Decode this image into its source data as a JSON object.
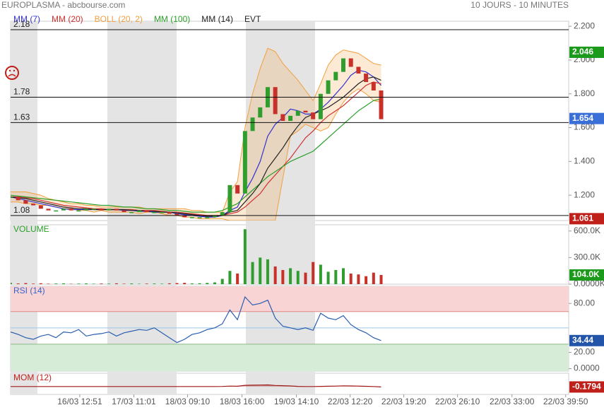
{
  "header": {
    "title": "EUROPLASMA - abcbourse.com",
    "period": "10 JOURS - 10 MINUTES",
    "events": "EVT"
  },
  "x_axis": {
    "xlim": [
      0,
      73.8
    ],
    "xticks": [
      {
        "value": 9.15,
        "label": "16/03 12:51"
      },
      {
        "value": 16.3,
        "label": "17/03 11:01"
      },
      {
        "value": 23.4,
        "label": "18/03 09:10"
      },
      {
        "value": 30.6,
        "label": "18/03 16:00"
      },
      {
        "value": 37.8,
        "label": "19/03 14:10"
      },
      {
        "value": 44.9,
        "label": "22/03 12:20"
      },
      {
        "value": 52,
        "label": "22/03 19:20"
      },
      {
        "value": 59.1,
        "label": "22/03 26:10"
      },
      {
        "value": 66.3,
        "label": "22/03 33:00"
      },
      {
        "value": 73.4,
        "label": "22/03 39:50"
      }
    ]
  },
  "chart_data": [
    {
      "type": "candlestick",
      "ylim": [
        1.05,
        2.23
      ],
      "yticks": [
        {
          "value": 2.2,
          "label": "2.200"
        },
        {
          "value": 2.0,
          "label": "2.000"
        },
        {
          "value": 1.8,
          "label": "1.800"
        },
        {
          "value": 1.6,
          "label": "1.600"
        },
        {
          "value": 1.4,
          "label": "1.400"
        },
        {
          "value": 1.2,
          "label": "1.200"
        }
      ],
      "hlines": [
        2.18,
        1.78,
        1.63,
        1.08
      ],
      "last_labels": [
        {
          "value": 2.046,
          "color": "#1c9a1c"
        },
        {
          "value": 1.654,
          "color": "#3a6fd8"
        },
        {
          "value": 1.061,
          "color": "#c0201a"
        }
      ],
      "up_color": "#2f9e2f",
      "down_color": "#c8302a",
      "close": [
        1.19,
        1.17,
        1.15,
        1.14,
        1.12,
        1.11,
        1.11,
        1.12,
        1.11,
        1.11,
        1.12,
        1.12,
        1.11,
        1.12,
        1.11,
        1.1,
        1.1,
        1.11,
        1.1,
        1.1,
        1.1,
        1.09,
        1.08,
        1.07,
        1.07,
        1.07,
        1.07,
        1.08,
        1.1,
        1.26,
        1.21,
        1.58,
        1.66,
        1.72,
        1.84,
        1.68,
        1.64,
        1.67,
        1.7,
        1.69,
        1.65,
        1.8,
        1.88,
        1.93,
        2.01,
        1.96,
        1.92,
        1.87,
        1.82,
        1.65
      ],
      "bands": {
        "name": "BOLL (20, 2)",
        "color": "#f0a040",
        "upper": [
          1.22,
          1.22,
          1.22,
          1.21,
          1.2,
          1.18,
          1.17,
          1.16,
          1.15,
          1.15,
          1.14,
          1.14,
          1.13,
          1.13,
          1.13,
          1.13,
          1.13,
          1.13,
          1.12,
          1.12,
          1.12,
          1.12,
          1.12,
          1.12,
          1.11,
          1.11,
          1.1,
          1.1,
          1.1,
          1.22,
          1.28,
          1.6,
          1.8,
          1.95,
          2.07,
          2.05,
          1.98,
          1.93,
          1.88,
          1.82,
          1.76,
          1.86,
          1.97,
          2.03,
          2.06,
          2.05,
          2.04,
          2.01,
          1.98,
          1.97
        ],
        "lower": [
          1.16,
          1.16,
          1.15,
          1.15,
          1.14,
          1.14,
          1.13,
          1.12,
          1.12,
          1.11,
          1.11,
          1.1,
          1.11,
          1.1,
          1.1,
          1.1,
          1.1,
          1.09,
          1.1,
          1.1,
          1.09,
          1.08,
          1.08,
          1.07,
          1.07,
          1.06,
          1.06,
          1.06,
          1.06,
          1.05,
          1.05,
          1.05,
          1.05,
          1.05,
          1.05,
          1.05,
          1.3,
          1.55,
          1.58,
          1.62,
          1.6,
          1.58,
          1.6,
          1.68,
          1.75,
          1.8,
          1.83,
          1.8,
          1.76,
          1.75
        ]
      },
      "series": [
        {
          "name": "MM (7)",
          "color": "#3333cc",
          "values": [
            1.19,
            1.18,
            1.17,
            1.16,
            1.15,
            1.14,
            1.13,
            1.12,
            1.115,
            1.115,
            1.115,
            1.115,
            1.115,
            1.115,
            1.115,
            1.11,
            1.11,
            1.105,
            1.105,
            1.1,
            1.1,
            1.1,
            1.09,
            1.085,
            1.08,
            1.075,
            1.07,
            1.07,
            1.08,
            1.11,
            1.13,
            1.22,
            1.3,
            1.4,
            1.55,
            1.62,
            1.66,
            1.71,
            1.7,
            1.68,
            1.68,
            1.71,
            1.75,
            1.8,
            1.85,
            1.91,
            1.94,
            1.93,
            1.9,
            1.85
          ]
        },
        {
          "name": "MM (20)",
          "color": "#d03030",
          "values": [
            1.19,
            1.19,
            1.185,
            1.18,
            1.17,
            1.16,
            1.15,
            1.14,
            1.135,
            1.13,
            1.125,
            1.12,
            1.12,
            1.115,
            1.115,
            1.115,
            1.115,
            1.11,
            1.11,
            1.11,
            1.105,
            1.1,
            1.1,
            1.095,
            1.09,
            1.085,
            1.08,
            1.08,
            1.08,
            1.09,
            1.1,
            1.13,
            1.17,
            1.21,
            1.27,
            1.32,
            1.37,
            1.42,
            1.48,
            1.54,
            1.58,
            1.63,
            1.67,
            1.7,
            1.73,
            1.77,
            1.81,
            1.85,
            1.87,
            1.86
          ]
        },
        {
          "name": "MM (100)",
          "color": "#2aa02a",
          "values": [
            1.2,
            1.195,
            1.19,
            1.185,
            1.18,
            1.175,
            1.17,
            1.165,
            1.16,
            1.155,
            1.15,
            1.145,
            1.14,
            1.14,
            1.135,
            1.13,
            1.13,
            1.125,
            1.12,
            1.12,
            1.115,
            1.11,
            1.11,
            1.105,
            1.1,
            1.1,
            1.1,
            1.1,
            1.11,
            1.13,
            1.15,
            1.19,
            1.23,
            1.27,
            1.31,
            1.34,
            1.37,
            1.4,
            1.42,
            1.44,
            1.46,
            1.5,
            1.54,
            1.58,
            1.62,
            1.66,
            1.7,
            1.73,
            1.76,
            1.77
          ]
        },
        {
          "name": "MM (14)",
          "color": "#222222",
          "values": [
            1.19,
            1.185,
            1.18,
            1.17,
            1.16,
            1.15,
            1.14,
            1.13,
            1.125,
            1.12,
            1.12,
            1.115,
            1.115,
            1.115,
            1.115,
            1.115,
            1.11,
            1.11,
            1.105,
            1.105,
            1.1,
            1.1,
            1.095,
            1.09,
            1.085,
            1.08,
            1.075,
            1.075,
            1.08,
            1.1,
            1.11,
            1.16,
            1.21,
            1.27,
            1.36,
            1.42,
            1.48,
            1.55,
            1.61,
            1.66,
            1.68,
            1.7,
            1.72,
            1.75,
            1.78,
            1.82,
            1.86,
            1.89,
            1.9,
            1.88
          ]
        }
      ]
    },
    {
      "type": "bar",
      "title": "VOLUME",
      "title_color": "#2aa02a",
      "ylim": [
        0,
        670000
      ],
      "yticks": [
        {
          "value": 600000,
          "label": "600.0K"
        },
        {
          "value": 300000,
          "label": "300.0K"
        },
        {
          "value": 0,
          "label": "0.0000K"
        }
      ],
      "last_label": {
        "value": 104000,
        "label": "104.0K",
        "color": "#1c9a1c"
      },
      "values": [
        15000,
        8000,
        12000,
        6000,
        10000,
        5000,
        7000,
        9000,
        4000,
        6000,
        8000,
        5000,
        7000,
        6000,
        9000,
        5000,
        8000,
        4000,
        6000,
        7000,
        5000,
        9000,
        12000,
        15000,
        8000,
        10000,
        14000,
        20000,
        60000,
        150000,
        120000,
        620000,
        250000,
        300000,
        280000,
        200000,
        160000,
        180000,
        150000,
        130000,
        250000,
        220000,
        140000,
        160000,
        180000,
        120000,
        110000,
        90000,
        130000,
        104000
      ]
    },
    {
      "type": "line",
      "title": "RSI (14)",
      "title_color": "#3366cc",
      "color": "#2a5db0",
      "ylim": [
        -3,
        101
      ],
      "overbought": 70,
      "oversold": 30,
      "midline": 50,
      "yticks": [
        {
          "value": 80,
          "label": "80.00"
        },
        {
          "value": 20,
          "label": "20.00"
        },
        {
          "value": 0,
          "label": "0.0000"
        }
      ],
      "last_label": {
        "value": 34.44,
        "color": "#2255aa"
      },
      "values": [
        45,
        42,
        38,
        36,
        40,
        42,
        38,
        45,
        44,
        48,
        40,
        42,
        43,
        45,
        40,
        44,
        46,
        48,
        47,
        50,
        44,
        38,
        32,
        36,
        42,
        44,
        48,
        50,
        55,
        72,
        60,
        88,
        78,
        80,
        84,
        62,
        52,
        50,
        48,
        50,
        47,
        68,
        62,
        60,
        65,
        54,
        48,
        44,
        38,
        34.44
      ]
    },
    {
      "type": "area",
      "title": "MOM (12)",
      "title_color": "#c0201a",
      "color": "#a01818",
      "ylim": [
        -3,
        5
      ],
      "last_label": {
        "value": -0.1794,
        "color": "#c0201a"
      },
      "values": [
        0,
        0,
        -0.01,
        -0.01,
        -0.01,
        0,
        0,
        0,
        0,
        0,
        0,
        0,
        0,
        0,
        0,
        0,
        0,
        0,
        0,
        0,
        0,
        -0.01,
        -0.01,
        -0.01,
        -0.01,
        -0.01,
        0,
        0,
        0.02,
        0.15,
        0.1,
        0.45,
        0.5,
        0.55,
        0.6,
        0.4,
        0.3,
        0.2,
        0.05,
        0,
        -0.02,
        0.05,
        0.1,
        0.15,
        0.25,
        0.2,
        0.15,
        0.08,
        0,
        -0.1794
      ]
    }
  ]
}
